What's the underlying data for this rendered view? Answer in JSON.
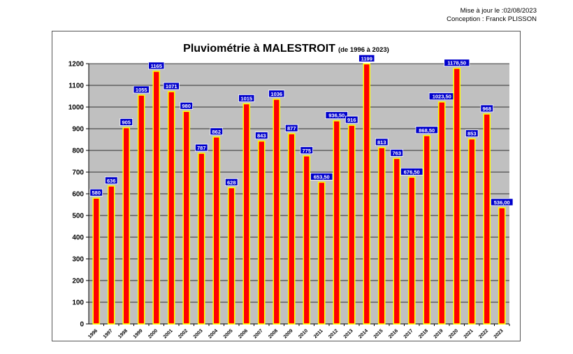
{
  "header": {
    "updated": "Mise à jour le :02/08/2023",
    "author": "Conception : Franck PLISSON"
  },
  "chart_data": {
    "type": "bar",
    "title": "Pluviométrie à MALESTROIT",
    "subtitle": "(de 1996 à 2023)",
    "categories": [
      "1996",
      "1997",
      "1998",
      "1999",
      "2000",
      "2001",
      "2002",
      "2003",
      "2004",
      "2005",
      "2006",
      "2007",
      "2008",
      "2009",
      "2010",
      "2011",
      "2012",
      "2013",
      "2014",
      "2015",
      "2016",
      "2017",
      "2018",
      "2019",
      "2020",
      "2021",
      "2022",
      "2023"
    ],
    "values": [
      580,
      636,
      905,
      1055,
      1165,
      1071,
      980,
      787,
      862,
      628,
      1015,
      843,
      1036,
      877,
      775,
      653.5,
      936.5,
      916,
      1199,
      813,
      763,
      676.5,
      868.5,
      1023.5,
      1178.5,
      853,
      968,
      536
    ],
    "data_labels": [
      "580",
      "636",
      "905",
      "1055",
      "1165",
      "1071",
      "980",
      "787",
      "862",
      "628",
      "1015",
      "843",
      "1036",
      "877",
      "775",
      "653,50",
      "936,50",
      "916",
      "1199",
      "813",
      "763",
      "676,50",
      "868,50",
      "1023,50",
      "1178,50",
      "853",
      "968",
      "536,00"
    ],
    "yticks": [
      "0",
      "100",
      "200",
      "300",
      "400",
      "500",
      "600",
      "700",
      "800",
      "900",
      "1000",
      "1100",
      "1200"
    ],
    "ylim": [
      0,
      1200
    ],
    "grid": true,
    "legend": "none",
    "colors": {
      "bar_fill": "#ff0000",
      "bar_edge": "#ffff00",
      "plot_bg": "#c0c0c0",
      "label_bg": "#0000cc",
      "label_text": "#ffffff"
    }
  }
}
